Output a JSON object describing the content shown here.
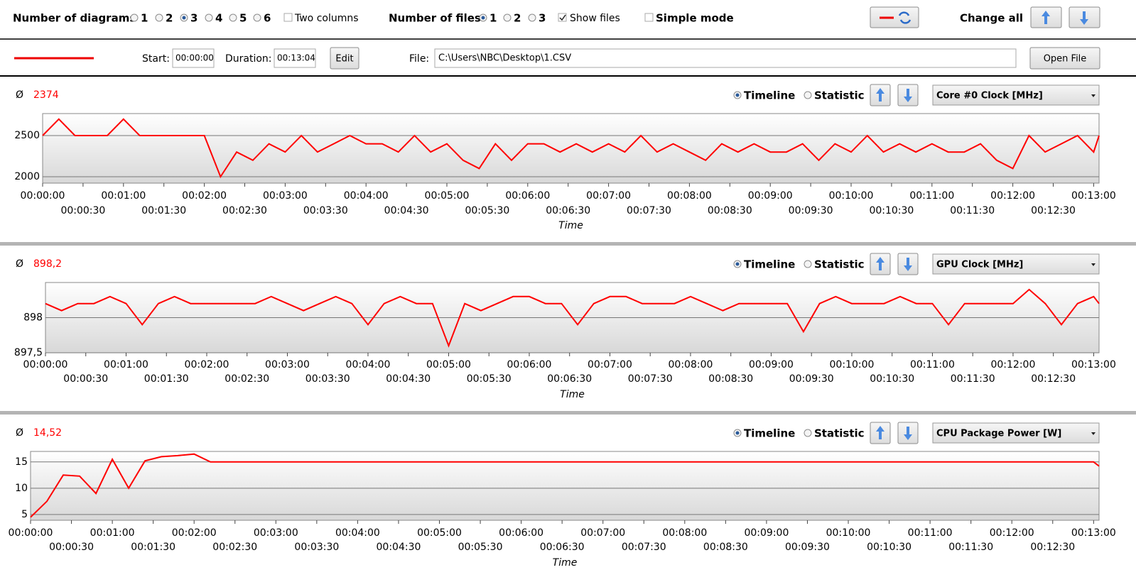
{
  "toolbar": {
    "diagrams_label": "Number of diagrams",
    "diagram_options": [
      "1",
      "2",
      "3",
      "4",
      "5",
      "6"
    ],
    "two_columns": "Two columns",
    "files_label": "Number of files",
    "file_options": [
      "1",
      "2",
      "3"
    ],
    "show_files": "Show files",
    "simple_mode": "Simple mode",
    "change_all": "Change all"
  },
  "file_bar": {
    "start_label": "Start:",
    "start": "00:00:00",
    "duration_label": "Duration:",
    "duration": "00:13:04",
    "edit": "Edit",
    "file_label": "File:",
    "file": "C:\\Users\\NBC\\Desktop\\1.CSV",
    "open": "Open File"
  },
  "chart_data": [
    {
      "type": "line",
      "average_symbol": "Ø",
      "average": "2374",
      "view_options": [
        "Timeline",
        "Statistic"
      ],
      "channel": "Core #0 Clock [MHz]",
      "xlabel": "Time",
      "color": "#ff0000",
      "x": [
        0,
        12,
        24,
        36,
        48,
        60,
        72,
        84,
        96,
        108,
        120,
        132,
        144,
        156,
        168,
        180,
        192,
        204,
        216,
        228,
        240,
        252,
        264,
        276,
        288,
        300,
        312,
        324,
        336,
        348,
        360,
        372,
        384,
        396,
        408,
        420,
        432,
        444,
        456,
        468,
        480,
        492,
        504,
        516,
        528,
        540,
        552,
        564,
        576,
        588,
        600,
        612,
        624,
        636,
        648,
        660,
        672,
        684,
        696,
        708,
        720,
        732,
        744,
        756,
        768,
        780,
        784
      ],
      "values": [
        2500,
        2700,
        2500,
        2500,
        2500,
        2700,
        2500,
        2500,
        2500,
        2500,
        2500,
        2000,
        2300,
        2200,
        2400,
        2300,
        2500,
        2300,
        2400,
        2500,
        2400,
        2400,
        2300,
        2500,
        2300,
        2400,
        2200,
        2100,
        2400,
        2200,
        2400,
        2400,
        2300,
        2400,
        2300,
        2400,
        2300,
        2500,
        2300,
        2400,
        2300,
        2200,
        2400,
        2300,
        2400,
        2300,
        2300,
        2400,
        2200,
        2400,
        2300,
        2500,
        2300,
        2400,
        2300,
        2400,
        2300,
        2300,
        2400,
        2200,
        2100,
        2500,
        2300,
        2400,
        2500,
        2300,
        2500
      ],
      "xlim": [
        0,
        784
      ],
      "ylim": [
        1922,
        2767
      ],
      "yticks": [
        2000,
        2500
      ],
      "xticks": [
        {
          "value": 0,
          "label": "00:00:00"
        },
        {
          "value": 30,
          "label": "00:00:30"
        },
        {
          "value": 60,
          "label": "00:01:00"
        },
        {
          "value": 90,
          "label": "00:01:30"
        },
        {
          "value": 120,
          "label": "00:02:00"
        },
        {
          "value": 150,
          "label": "00:02:30"
        },
        {
          "value": 180,
          "label": "00:03:00"
        },
        {
          "value": 210,
          "label": "00:03:30"
        },
        {
          "value": 240,
          "label": "00:04:00"
        },
        {
          "value": 270,
          "label": "00:04:30"
        },
        {
          "value": 300,
          "label": "00:05:00"
        },
        {
          "value": 330,
          "label": "00:05:30"
        },
        {
          "value": 360,
          "label": "00:06:00"
        },
        {
          "value": 390,
          "label": "00:06:30"
        },
        {
          "value": 420,
          "label": "00:07:00"
        },
        {
          "value": 450,
          "label": "00:07:30"
        },
        {
          "value": 480,
          "label": "00:08:00"
        },
        {
          "value": 510,
          "label": "00:08:30"
        },
        {
          "value": 540,
          "label": "00:09:00"
        },
        {
          "value": 570,
          "label": "00:09:30"
        },
        {
          "value": 600,
          "label": "00:10:00"
        },
        {
          "value": 630,
          "label": "00:10:30"
        },
        {
          "value": 660,
          "label": "00:11:00"
        },
        {
          "value": 690,
          "label": "00:11:30"
        },
        {
          "value": 720,
          "label": "00:12:00"
        },
        {
          "value": 750,
          "label": "00:12:30"
        },
        {
          "value": 780,
          "label": "00:13:00"
        }
      ],
      "grid": true
    },
    {
      "type": "line",
      "average_symbol": "Ø",
      "average": "898,2",
      "view_options": [
        "Timeline",
        "Statistic"
      ],
      "channel": "GPU Clock [MHz]",
      "xlabel": "Time",
      "color": "#ff0000",
      "x": [
        0,
        12,
        24,
        36,
        48,
        60,
        72,
        84,
        96,
        108,
        120,
        132,
        144,
        156,
        168,
        180,
        192,
        204,
        216,
        228,
        240,
        252,
        264,
        276,
        288,
        300,
        312,
        324,
        336,
        348,
        360,
        372,
        384,
        396,
        408,
        420,
        432,
        444,
        456,
        468,
        480,
        492,
        504,
        516,
        528,
        540,
        552,
        564,
        576,
        588,
        600,
        612,
        624,
        636,
        648,
        660,
        672,
        684,
        696,
        708,
        720,
        732,
        744,
        756,
        768,
        780,
        784
      ],
      "values": [
        898.2,
        898.1,
        898.2,
        898.2,
        898.3,
        898.2,
        897.9,
        898.2,
        898.3,
        898.2,
        898.2,
        898.2,
        898.2,
        898.2,
        898.3,
        898.2,
        898.1,
        898.2,
        898.3,
        898.2,
        897.9,
        898.2,
        898.3,
        898.2,
        898.2,
        897.6,
        898.2,
        898.1,
        898.2,
        898.3,
        898.3,
        898.2,
        898.2,
        897.9,
        898.2,
        898.3,
        898.3,
        898.2,
        898.2,
        898.2,
        898.3,
        898.2,
        898.1,
        898.2,
        898.2,
        898.2,
        898.2,
        897.8,
        898.2,
        898.3,
        898.2,
        898.2,
        898.2,
        898.3,
        898.2,
        898.2,
        897.9,
        898.2,
        898.2,
        898.2,
        898.2,
        898.4,
        898.2,
        897.9,
        898.2,
        898.3,
        898.2
      ],
      "xlim": [
        0,
        784
      ],
      "ylim": [
        897.5,
        898.5
      ],
      "yticks": [
        {
          "value": 897.5,
          "label": "897,5"
        },
        898
      ],
      "xticks": [
        {
          "value": 0,
          "label": "00:00:00"
        },
        {
          "value": 30,
          "label": "00:00:30"
        },
        {
          "value": 60,
          "label": "00:01:00"
        },
        {
          "value": 90,
          "label": "00:01:30"
        },
        {
          "value": 120,
          "label": "00:02:00"
        },
        {
          "value": 150,
          "label": "00:02:30"
        },
        {
          "value": 180,
          "label": "00:03:00"
        },
        {
          "value": 210,
          "label": "00:03:30"
        },
        {
          "value": 240,
          "label": "00:04:00"
        },
        {
          "value": 270,
          "label": "00:04:30"
        },
        {
          "value": 300,
          "label": "00:05:00"
        },
        {
          "value": 330,
          "label": "00:05:30"
        },
        {
          "value": 360,
          "label": "00:06:00"
        },
        {
          "value": 390,
          "label": "00:06:30"
        },
        {
          "value": 420,
          "label": "00:07:00"
        },
        {
          "value": 450,
          "label": "00:07:30"
        },
        {
          "value": 480,
          "label": "00:08:00"
        },
        {
          "value": 510,
          "label": "00:08:30"
        },
        {
          "value": 540,
          "label": "00:09:00"
        },
        {
          "value": 570,
          "label": "00:09:30"
        },
        {
          "value": 600,
          "label": "00:10:00"
        },
        {
          "value": 630,
          "label": "00:10:30"
        },
        {
          "value": 660,
          "label": "00:11:00"
        },
        {
          "value": 690,
          "label": "00:11:30"
        },
        {
          "value": 720,
          "label": "00:12:00"
        },
        {
          "value": 750,
          "label": "00:12:30"
        },
        {
          "value": 780,
          "label": "00:13:00"
        }
      ],
      "grid": true
    },
    {
      "type": "line",
      "average_symbol": "Ø",
      "average": "14,52",
      "view_options": [
        "Timeline",
        "Statistic"
      ],
      "channel": "CPU Package Power [W]",
      "xlabel": "Time",
      "color": "#ff0000",
      "x": [
        0,
        12,
        24,
        36,
        48,
        60,
        72,
        84,
        96,
        108,
        120,
        132,
        144,
        156,
        168,
        180,
        192,
        204,
        216,
        228,
        240,
        252,
        264,
        276,
        288,
        300,
        312,
        324,
        336,
        348,
        360,
        372,
        384,
        396,
        408,
        420,
        432,
        444,
        456,
        468,
        480,
        492,
        504,
        516,
        528,
        540,
        552,
        564,
        576,
        588,
        600,
        612,
        624,
        636,
        648,
        660,
        672,
        684,
        696,
        708,
        720,
        732,
        744,
        756,
        768,
        780,
        784
      ],
      "values": [
        4.5,
        7.5,
        12.5,
        12.3,
        9,
        15.5,
        10,
        15.2,
        16,
        16.2,
        16.5,
        15,
        15,
        15,
        15,
        15,
        15,
        15,
        15,
        15,
        15,
        15,
        15,
        15,
        15,
        15,
        15,
        15,
        15,
        15,
        15,
        15,
        15,
        15,
        15,
        15,
        15,
        15,
        15,
        15,
        15,
        15,
        15,
        15,
        15,
        15,
        15,
        15,
        15,
        15,
        15,
        15,
        15,
        15,
        15,
        15,
        15,
        15,
        15,
        15,
        15,
        15,
        15,
        15,
        15,
        15,
        14.2
      ],
      "xlim": [
        0,
        784
      ],
      "ylim": [
        3.9,
        17
      ],
      "yticks": [
        5,
        10,
        15
      ],
      "xticks": [
        {
          "value": 0,
          "label": "00:00:00"
        },
        {
          "value": 30,
          "label": "00:00:30"
        },
        {
          "value": 60,
          "label": "00:01:00"
        },
        {
          "value": 90,
          "label": "00:01:30"
        },
        {
          "value": 120,
          "label": "00:02:00"
        },
        {
          "value": 150,
          "label": "00:02:30"
        },
        {
          "value": 180,
          "label": "00:03:00"
        },
        {
          "value": 210,
          "label": "00:03:30"
        },
        {
          "value": 240,
          "label": "00:04:00"
        },
        {
          "value": 270,
          "label": "00:04:30"
        },
        {
          "value": 300,
          "label": "00:05:00"
        },
        {
          "value": 330,
          "label": "00:05:30"
        },
        {
          "value": 360,
          "label": "00:06:00"
        },
        {
          "value": 390,
          "label": "00:06:30"
        },
        {
          "value": 420,
          "label": "00:07:00"
        },
        {
          "value": 450,
          "label": "00:07:30"
        },
        {
          "value": 480,
          "label": "00:08:00"
        },
        {
          "value": 510,
          "label": "00:08:30"
        },
        {
          "value": 540,
          "label": "00:09:00"
        },
        {
          "value": 570,
          "label": "00:09:30"
        },
        {
          "value": 600,
          "label": "00:10:00"
        },
        {
          "value": 630,
          "label": "00:10:30"
        },
        {
          "value": 660,
          "label": "00:11:00"
        },
        {
          "value": 690,
          "label": "00:11:30"
        },
        {
          "value": 720,
          "label": "00:12:00"
        },
        {
          "value": 750,
          "label": "00:12:30"
        },
        {
          "value": 780,
          "label": "00:13:00"
        }
      ],
      "grid": true
    }
  ]
}
